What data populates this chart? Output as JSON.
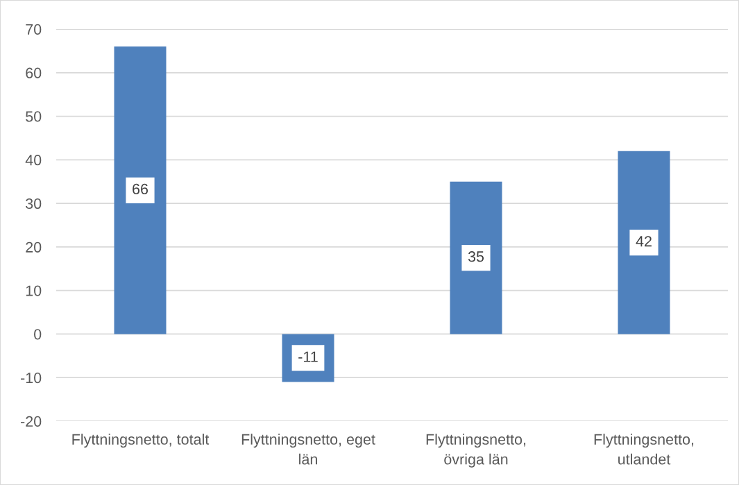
{
  "chart_data": {
    "type": "bar",
    "categories": [
      "Flyttningsnetto, totalt",
      "Flyttningsnetto, eget\nlän",
      "Flyttningsnetto,\növriga län",
      "Flyttningsnetto,\nutlandet"
    ],
    "values": [
      66,
      -11,
      35,
      42
    ],
    "color": "#4f81bd",
    "ylim": [
      -20,
      70
    ],
    "yticks": [
      -20,
      -10,
      0,
      10,
      20,
      30,
      40,
      50,
      60,
      70
    ],
    "grid": "y",
    "data_labels": true
  }
}
